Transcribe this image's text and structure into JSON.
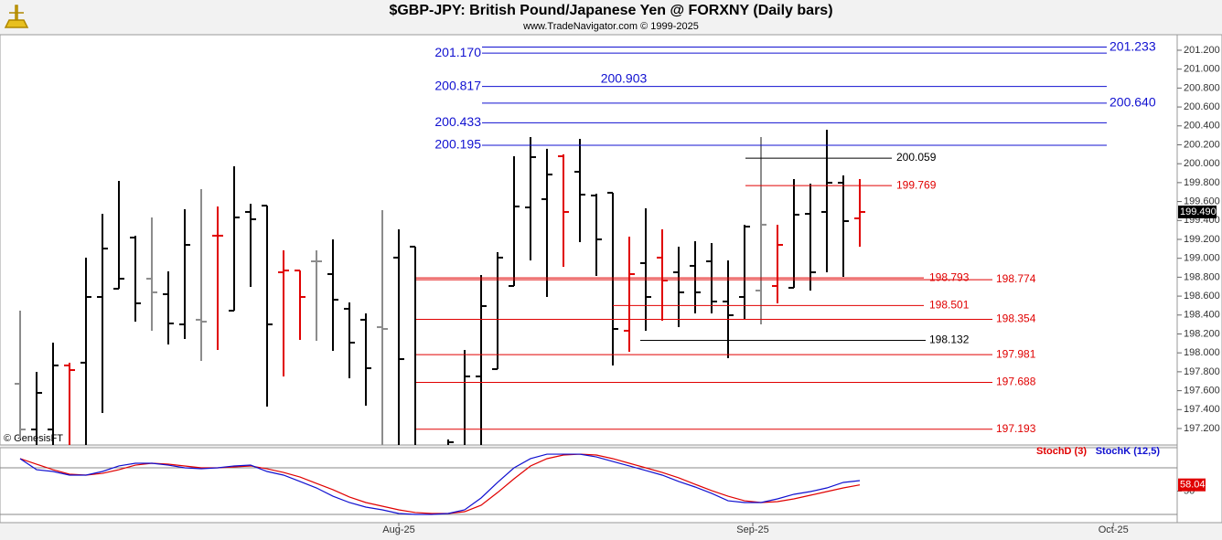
{
  "chart_data": [
    {
      "type": "ohlc",
      "title": "$GBP-JPY:  British Pound/Japanese Yen @ FORXNY  (Daily bars)",
      "subtitle": "www.TradeNavigator.com © 1999-2025",
      "annotation": "© GenesisFT",
      "x": [
        0,
        1,
        2,
        3,
        4,
        5,
        6,
        7,
        8,
        9,
        10,
        11,
        12,
        13,
        14,
        15,
        16,
        17,
        18,
        19,
        20,
        21,
        22,
        23,
        24,
        25,
        26,
        27,
        28,
        29,
        30,
        31,
        32,
        33,
        34,
        35,
        36,
        37,
        38,
        39,
        40,
        41,
        42,
        43,
        44,
        45,
        46,
        47,
        48,
        49,
        50,
        51
      ],
      "open": [
        197.673,
        197.19,
        197.19,
        197.867,
        197.896,
        198.591,
        198.678,
        199.219,
        198.784,
        198.62,
        198.301,
        198.35,
        199.239,
        198.446,
        199.49,
        199.557,
        198.852,
        198.871,
        198.968,
        198.833,
        198.466,
        198.35,
        198.272,
        199.007,
        199.123,
        null,
        196.95,
        196.95,
        197.751,
        197.828,
        198.707,
        199.538,
        199.625,
        200.079,
        199.915,
        199.664,
        199.693,
        198.234,
        198.949,
        199.007,
        198.852,
        198.92,
        198.968,
        198.543,
        198.591,
        198.659,
        198.707,
        198.688,
        199.47,
        199.49,
        199.799,
        199.422
      ],
      "high": [
        198.446,
        197.799,
        198.108,
        197.896,
        199.007,
        199.47,
        199.818,
        199.239,
        199.432,
        198.862,
        199.519,
        199.731,
        199.548,
        199.973,
        199.577,
        199.557,
        199.084,
        198.871,
        199.084,
        199.2,
        198.533,
        198.417,
        199.509,
        199.306,
        199.123,
        null,
        197.084,
        198.031,
        198.823,
        199.065,
        200.079,
        200.282,
        200.157,
        200.099,
        200.263,
        199.683,
        199.693,
        199.229,
        199.528,
        199.306,
        199.123,
        199.181,
        199.161,
        198.978,
        199.355,
        200.282,
        199.355,
        199.838,
        199.789,
        200.359,
        199.876,
        199.838
      ],
      "low": [
        197.094,
        196.95,
        196.9,
        196.9,
        196.9,
        197.364,
        198.678,
        198.33,
        198.234,
        198.089,
        198.147,
        197.915,
        198.031,
        198.446,
        198.698,
        197.432,
        197.751,
        198.137,
        198.127,
        198.021,
        197.731,
        197.441,
        196.9,
        196.9,
        196.9,
        null,
        196.9,
        196.9,
        196.9,
        197.828,
        198.707,
        198.978,
        198.591,
        198.91,
        199.171,
        198.813,
        197.867,
        198.012,
        198.234,
        198.34,
        198.272,
        198.417,
        198.417,
        197.944,
        198.35,
        198.301,
        198.524,
        198.688,
        198.659,
        198.852,
        198.804,
        199.123
      ],
      "close": [
        197.19,
        197.577,
        197.867,
        197.818,
        198.591,
        199.103,
        198.784,
        198.524,
        198.64,
        198.311,
        199.142,
        198.33,
        199.239,
        199.432,
        199.413,
        198.301,
        198.871,
        198.591,
        198.968,
        198.562,
        198.108,
        197.838,
        198.253,
        197.934,
        196.95,
        null,
        197.055,
        197.751,
        198.495,
        199.007,
        199.548,
        200.07,
        199.886,
        199.49,
        199.673,
        199.2,
        198.253,
        198.833,
        198.591,
        198.765,
        198.64,
        198.64,
        198.543,
        198.398,
        199.335,
        199.355,
        199.142,
        199.461,
        198.852,
        199.799,
        199.393,
        199.49
      ],
      "colors": [
        "#8c8c8c",
        "#000000",
        "#000000",
        "#e00000",
        "#000000",
        "#000000",
        "#000000",
        "#000000",
        "#8c8c8c",
        "#000000",
        "#000000",
        "#8c8c8c",
        "#e00000",
        "#000000",
        "#000000",
        "#000000",
        "#e00000",
        "#e00000",
        "#8c8c8c",
        "#000000",
        "#000000",
        "#000000",
        "#8c8c8c",
        "#000000",
        "#000000",
        null,
        "#000000",
        "#000000",
        "#000000",
        "#000000",
        "#000000",
        "#000000",
        "#000000",
        "#e00000",
        "#000000",
        "#000000",
        "#000000",
        "#e00000",
        "#000000",
        "#e00000",
        "#000000",
        "#000000",
        "#000000",
        "#000000",
        "#000000",
        "#8c8c8c",
        "#e00000",
        "#000000",
        "#000000",
        "#000000",
        "#000000",
        "#e00000"
      ],
      "xlim": [
        -1.222,
        70.278
      ],
      "ylim": [
        197.026,
        201.364
      ],
      "yticks": [
        {
          "value": 197.2,
          "label": "197.200"
        },
        {
          "value": 197.4,
          "label": "197.400"
        },
        {
          "value": 197.6,
          "label": "197.600"
        },
        {
          "value": 197.8,
          "label": "197.800"
        },
        {
          "value": 198.0,
          "label": "198.000"
        },
        {
          "value": 198.2,
          "label": "198.200"
        },
        {
          "value": 198.4,
          "label": "198.400"
        },
        {
          "value": 198.6,
          "label": "198.600"
        },
        {
          "value": 198.8,
          "label": "198.800"
        },
        {
          "value": 199.0,
          "label": "199.000"
        },
        {
          "value": 199.2,
          "label": "199.200"
        },
        {
          "value": 199.4,
          "label": "199.400"
        },
        {
          "value": 199.6,
          "label": "199.600"
        },
        {
          "value": 199.8,
          "label": "199.800"
        },
        {
          "value": 200.0,
          "label": "200.000"
        },
        {
          "value": 200.2,
          "label": "200.200"
        },
        {
          "value": 200.4,
          "label": "200.400"
        },
        {
          "value": 200.6,
          "label": "200.600"
        },
        {
          "value": 200.8,
          "label": "200.800"
        },
        {
          "value": 201.0,
          "label": "201.000"
        },
        {
          "value": 201.2,
          "label": "201.200"
        }
      ],
      "last_price": {
        "value": 199.49,
        "label": "199.490"
      },
      "levels": [
        {
          "value": 201.233,
          "label": "201.233",
          "color": "#1010d0"
        },
        {
          "value": 201.17,
          "label": "201.170",
          "color": "#1010d0"
        },
        {
          "value": 200.903,
          "label": "200.903",
          "color": "#1010d0"
        },
        {
          "value": 200.817,
          "label": "200.817",
          "color": "#1010d0"
        },
        {
          "value": 200.64,
          "label": "200.640",
          "color": "#1010d0"
        },
        {
          "value": 200.433,
          "label": "200.433",
          "color": "#1010d0"
        },
        {
          "value": 200.195,
          "label": "200.195",
          "color": "#1010d0"
        },
        {
          "value": 200.059,
          "label": "200.059",
          "color": "#000000"
        },
        {
          "value": 199.769,
          "label": "199.769",
          "color": "#e00000"
        },
        {
          "value": 198.793,
          "label": "198.793",
          "color": "#e00000"
        },
        {
          "value": 198.774,
          "label": "198.774",
          "color": "#e00000"
        },
        {
          "value": 198.501,
          "label": "198.501",
          "color": "#e00000"
        },
        {
          "value": 198.354,
          "label": "198.354",
          "color": "#e00000"
        },
        {
          "value": 198.132,
          "label": "198.132",
          "color": "#000000"
        },
        {
          "value": 197.981,
          "label": "197.981",
          "color": "#e00000"
        },
        {
          "value": 197.688,
          "label": "197.688",
          "color": "#e00000"
        },
        {
          "value": 197.193,
          "label": "197.193",
          "color": "#e00000"
        }
      ]
    },
    {
      "type": "line",
      "x": [
        0,
        1,
        2,
        3,
        4,
        5,
        6,
        7,
        8,
        9,
        10,
        11,
        12,
        13,
        14,
        15,
        16,
        17,
        18,
        19,
        20,
        21,
        22,
        23,
        24,
        25,
        26,
        27,
        28,
        29,
        30,
        31,
        32,
        33,
        34,
        35,
        36,
        37,
        38,
        39,
        40,
        41,
        42,
        43,
        44,
        45,
        46,
        47,
        48,
        49,
        50,
        51
      ],
      "series": [
        {
          "name": "StochD (3)",
          "color": "#e00000",
          "values": [
            91.8,
            84.7,
            77.6,
            71.8,
            70.6,
            72.9,
            77.6,
            83.5,
            85.9,
            84.7,
            82.4,
            80.0,
            80.0,
            81.2,
            82.4,
            78.8,
            74.1,
            68.2,
            60.0,
            51.8,
            42.4,
            35.3,
            30.6,
            25.9,
            22.4,
            21.2,
            21.2,
            23.5,
            31.8,
            48.2,
            65.9,
            82.4,
            91.8,
            96.5,
            97.6,
            96.5,
            91.8,
            85.9,
            80.0,
            74.1,
            67.1,
            58.8,
            50.6,
            43.5,
            37.6,
            35.3,
            36.5,
            40.0,
            44.7,
            49.4,
            54.1,
            58.04
          ]
        },
        {
          "name": "StochK (12,5)",
          "color": "#1010d0",
          "values": [
            91.8,
            77.6,
            75.3,
            70.6,
            70.6,
            75.3,
            82.4,
            85.9,
            85.9,
            83.5,
            80.0,
            78.8,
            80.0,
            82.4,
            83.5,
            75.3,
            70.6,
            62.4,
            54.1,
            43.5,
            35.3,
            29.4,
            25.9,
            21.2,
            20.0,
            20.0,
            21.2,
            25.9,
            41.2,
            61.2,
            80.0,
            91.8,
            97.6,
            97.6,
            97.6,
            94.1,
            88.2,
            82.4,
            76.5,
            70.6,
            62.4,
            55.3,
            47.1,
            37.6,
            35.3,
            35.3,
            40.0,
            45.9,
            49.4,
            54.1,
            61.2,
            63.5
          ]
        }
      ],
      "xlim": [
        -1.222,
        70.278
      ],
      "xticks": [
        {
          "value": 23,
          "label": "Aug-25"
        },
        {
          "value": 44.5,
          "label": "Sep-25"
        },
        {
          "value": 66.4,
          "label": "Oct-25"
        }
      ],
      "ylim": [
        9.4,
        105.9
      ],
      "yticks": [
        50
      ],
      "bands": [
        20,
        80
      ]
    }
  ]
}
